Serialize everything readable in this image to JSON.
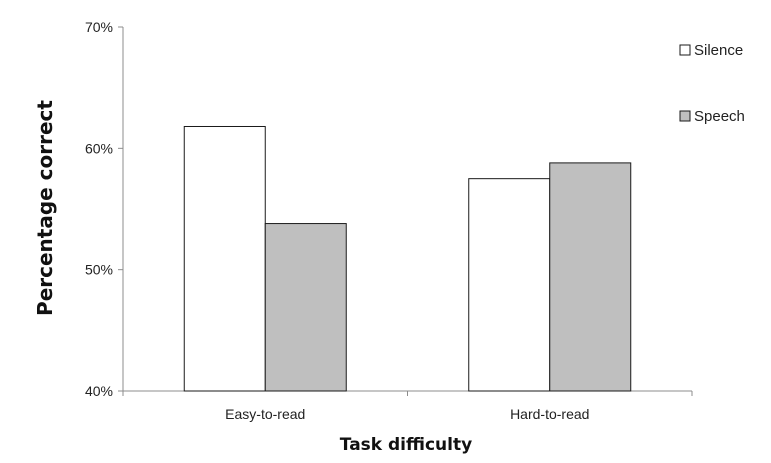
{
  "chart_data": {
    "type": "bar",
    "title": "",
    "xlabel": "Task difficulty",
    "ylabel": "Percentage correct",
    "categories": [
      "Easy-to-read",
      "Hard-to-read"
    ],
    "series": [
      {
        "name": "Silence",
        "values": [
          61.8,
          57.5
        ],
        "color": "#ffffff"
      },
      {
        "name": "Speech",
        "values": [
          53.8,
          58.8
        ],
        "color": "#bfbfbf"
      }
    ],
    "ylim": [
      40,
      70
    ],
    "yticks": [
      40,
      50,
      60,
      70
    ],
    "ytick_labels": [
      "40%",
      "50%",
      "60%",
      "70%"
    ],
    "grid": false,
    "legend_placement": "right"
  }
}
